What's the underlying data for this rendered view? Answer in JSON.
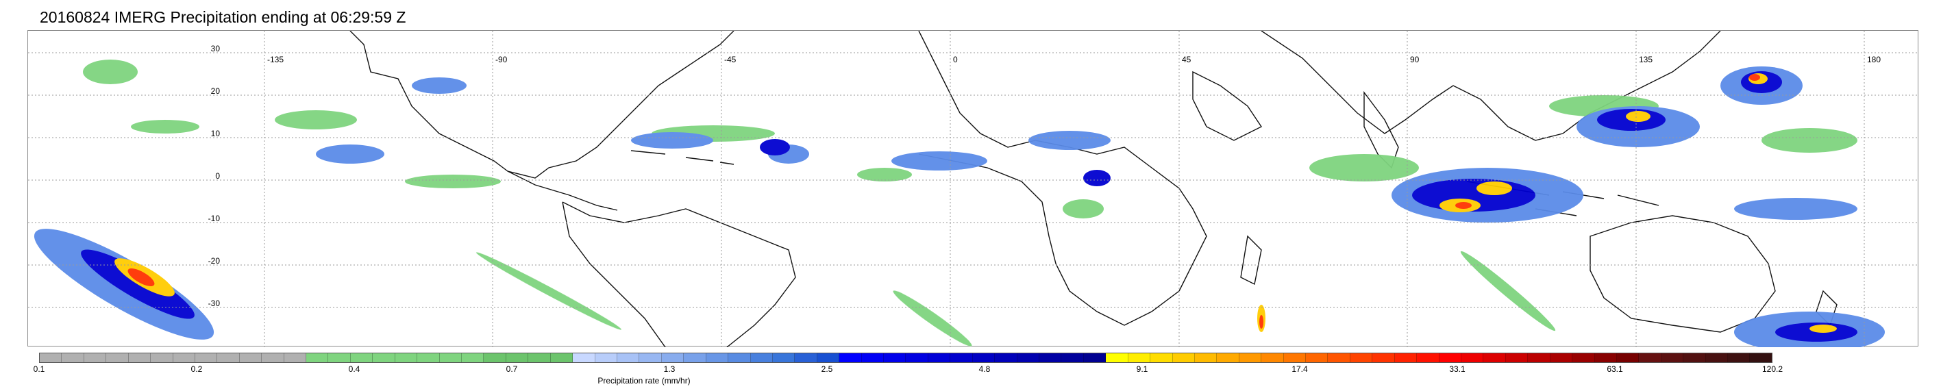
{
  "title": "20160824 IMERG Precipitation ending at 06:29:59 Z",
  "map": {
    "latitude_labels": [
      "30",
      "20",
      "10",
      "0",
      "-10",
      "-20",
      "-30"
    ],
    "longitude_labels": [
      "-135",
      "-90",
      "-45",
      "0",
      "45",
      "90",
      "135",
      "180"
    ],
    "coastline_color": "#111111",
    "gridline_color": "#9a9a9a"
  },
  "colorbar": {
    "label": "Precipitation rate (mm/hr)",
    "tick_labels": [
      "0.1",
      "0.2",
      "0.4",
      "0.7",
      "1.3",
      "2.5",
      "4.8",
      "9.1",
      "17.4",
      "33.1",
      "63.1",
      "120.2"
    ],
    "colors": [
      "#b0b0b0",
      "#b0b0b0",
      "#b0b0b0",
      "#b0b0b0",
      "#b0b0b0",
      "#b0b0b0",
      "#b0b0b0",
      "#b0b0b0",
      "#b0b0b0",
      "#b0b0b0",
      "#b0b0b0",
      "#b0b0b0",
      "#7fd47f",
      "#7fd47f",
      "#7fd47f",
      "#7fd47f",
      "#7fd47f",
      "#7fd47f",
      "#7fd47f",
      "#7fd47f",
      "#6cc46c",
      "#6cc46c",
      "#6cc46c",
      "#6cc46c",
      "#c8d8ff",
      "#b8cdfa",
      "#a8c2f6",
      "#98b7f2",
      "#88acee",
      "#78a1ea",
      "#6896e6",
      "#588be2",
      "#4880de",
      "#3875da",
      "#2860d6",
      "#1850d2",
      "#0000ff",
      "#0000f5",
      "#0000eb",
      "#0000e1",
      "#0000d7",
      "#0000cd",
      "#0000c3",
      "#0000b9",
      "#0000af",
      "#0000a5",
      "#00009b",
      "#000091",
      "#ffff00",
      "#ffee00",
      "#ffdd00",
      "#ffcc00",
      "#ffbb00",
      "#ffaa00",
      "#ff9900",
      "#ff8800",
      "#ff7700",
      "#ff6600",
      "#ff5500",
      "#ff4400",
      "#ff3300",
      "#ff2200",
      "#ff1100",
      "#ff0000",
      "#ee0000",
      "#dd0000",
      "#cc0000",
      "#bb0000",
      "#aa0000",
      "#990000",
      "#880000",
      "#770000",
      "#661111",
      "#5c1111",
      "#521111",
      "#481111",
      "#3e1111",
      "#341111"
    ]
  }
}
